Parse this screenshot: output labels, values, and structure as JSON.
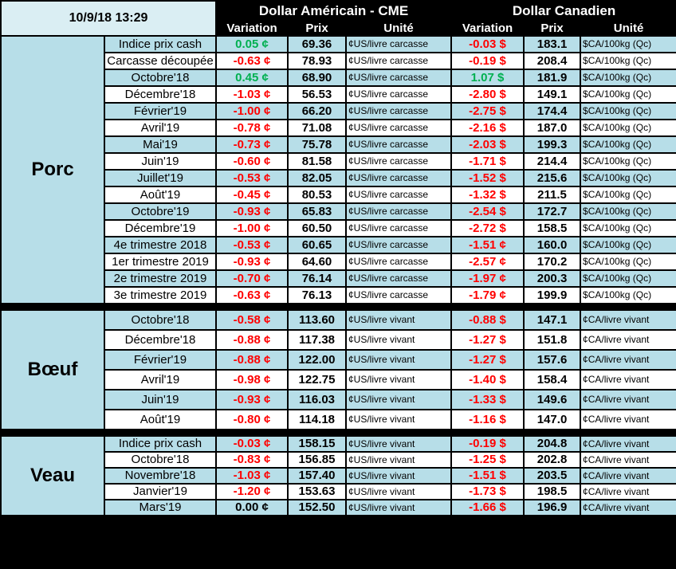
{
  "header": {
    "timestamp": "10/9/18 13:29",
    "us_group": "Dollar Américain - CME",
    "ca_group": "Dollar Canadien",
    "col_variation": "Variation",
    "col_prix": "Prix",
    "col_unite": "Unité"
  },
  "colors": {
    "up": "#00B050",
    "down": "#FF0000",
    "flat": "#000000",
    "stripe_blue": "#B7DEE8",
    "stripe_white": "#FFFFFF",
    "corner_bg": "#DAEEF3",
    "header_bg": "#000000",
    "header_text": "#FFFFFF"
  },
  "chart_data": {
    "type": "table",
    "column_groups": [
      "Dollar Américain - CME",
      "Dollar Canadien"
    ],
    "columns": [
      "Variation",
      "Prix",
      "Unité",
      "Variation",
      "Prix",
      "Unité"
    ],
    "sections": [
      {
        "id": "porc",
        "label": "Porc",
        "rows": [
          {
            "label": "Indice prix cash",
            "us_var": "0.05 ¢",
            "us_dir": "up",
            "us_prix": "69.36",
            "us_unit": "¢US/livre carcasse",
            "ca_var": "-0.03 $",
            "ca_dir": "down",
            "ca_prix": "183.1",
            "ca_unit": "$CA/100kg (Qc)"
          },
          {
            "label": "Carcasse découpée",
            "us_var": "-0.63 ¢",
            "us_dir": "down",
            "us_prix": "78.93",
            "us_unit": "¢US/livre carcasse",
            "ca_var": "-0.19 $",
            "ca_dir": "down",
            "ca_prix": "208.4",
            "ca_unit": "$CA/100kg (Qc)"
          },
          {
            "label": "Octobre'18",
            "us_var": "0.45 ¢",
            "us_dir": "up",
            "us_prix": "68.90",
            "us_unit": "¢US/livre carcasse",
            "ca_var": "1.07 $",
            "ca_dir": "up",
            "ca_prix": "181.9",
            "ca_unit": "$CA/100kg (Qc)"
          },
          {
            "label": "Décembre'18",
            "us_var": "-1.03 ¢",
            "us_dir": "down",
            "us_prix": "56.53",
            "us_unit": "¢US/livre carcasse",
            "ca_var": "-2.80 $",
            "ca_dir": "down",
            "ca_prix": "149.1",
            "ca_unit": "$CA/100kg (Qc)"
          },
          {
            "label": "Février'19",
            "us_var": "-1.00 ¢",
            "us_dir": "down",
            "us_prix": "66.20",
            "us_unit": "¢US/livre carcasse",
            "ca_var": "-2.75 $",
            "ca_dir": "down",
            "ca_prix": "174.4",
            "ca_unit": "$CA/100kg (Qc)"
          },
          {
            "label": "Avril'19",
            "us_var": "-0.78 ¢",
            "us_dir": "down",
            "us_prix": "71.08",
            "us_unit": "¢US/livre carcasse",
            "ca_var": "-2.16 $",
            "ca_dir": "down",
            "ca_prix": "187.0",
            "ca_unit": "$CA/100kg (Qc)"
          },
          {
            "label": "Mai'19",
            "us_var": "-0.73 ¢",
            "us_dir": "down",
            "us_prix": "75.78",
            "us_unit": "¢US/livre carcasse",
            "ca_var": "-2.03 $",
            "ca_dir": "down",
            "ca_prix": "199.3",
            "ca_unit": "$CA/100kg (Qc)"
          },
          {
            "label": "Juin'19",
            "us_var": "-0.60 ¢",
            "us_dir": "down",
            "us_prix": "81.58",
            "us_unit": "¢US/livre carcasse",
            "ca_var": "-1.71 $",
            "ca_dir": "down",
            "ca_prix": "214.4",
            "ca_unit": "$CA/100kg (Qc)"
          },
          {
            "label": "Juillet'19",
            "us_var": "-0.53 ¢",
            "us_dir": "down",
            "us_prix": "82.05",
            "us_unit": "¢US/livre carcasse",
            "ca_var": "-1.52 $",
            "ca_dir": "down",
            "ca_prix": "215.6",
            "ca_unit": "$CA/100kg (Qc)"
          },
          {
            "label": "Août'19",
            "us_var": "-0.45 ¢",
            "us_dir": "down",
            "us_prix": "80.53",
            "us_unit": "¢US/livre carcasse",
            "ca_var": "-1.32 $",
            "ca_dir": "down",
            "ca_prix": "211.5",
            "ca_unit": "$CA/100kg (Qc)"
          },
          {
            "label": "Octobre'19",
            "us_var": "-0.93 ¢",
            "us_dir": "down",
            "us_prix": "65.83",
            "us_unit": "¢US/livre carcasse",
            "ca_var": "-2.54 $",
            "ca_dir": "down",
            "ca_prix": "172.7",
            "ca_unit": "$CA/100kg (Qc)"
          },
          {
            "label": "Décembre'19",
            "us_var": "-1.00 ¢",
            "us_dir": "down",
            "us_prix": "60.50",
            "us_unit": "¢US/livre carcasse",
            "ca_var": "-2.72 $",
            "ca_dir": "down",
            "ca_prix": "158.5",
            "ca_unit": "$CA/100kg (Qc)"
          },
          {
            "label": "4e trimestre 2018",
            "us_var": "-0.53 ¢",
            "us_dir": "down",
            "us_prix": "60.65",
            "us_unit": "¢US/livre carcasse",
            "ca_var": "-1.51 ¢",
            "ca_dir": "down",
            "ca_prix": "160.0",
            "ca_unit": "$CA/100kg (Qc)"
          },
          {
            "label": "1er trimestre 2019",
            "us_var": "-0.93 ¢",
            "us_dir": "down",
            "us_prix": "64.60",
            "us_unit": "¢US/livre carcasse",
            "ca_var": "-2.57 ¢",
            "ca_dir": "down",
            "ca_prix": "170.2",
            "ca_unit": "$CA/100kg (Qc)"
          },
          {
            "label": "2e trimestre 2019",
            "us_var": "-0.70 ¢",
            "us_dir": "down",
            "us_prix": "76.14",
            "us_unit": "¢US/livre carcasse",
            "ca_var": "-1.97 ¢",
            "ca_dir": "down",
            "ca_prix": "200.3",
            "ca_unit": "$CA/100kg (Qc)"
          },
          {
            "label": "3e trimestre 2019",
            "us_var": "-0.63 ¢",
            "us_dir": "down",
            "us_prix": "76.13",
            "us_unit": "¢US/livre carcasse",
            "ca_var": "-1.79 ¢",
            "ca_dir": "down",
            "ca_prix": "199.9",
            "ca_unit": "$CA/100kg (Qc)"
          }
        ]
      },
      {
        "id": "boeuf",
        "label": "Bœuf",
        "rows": [
          {
            "label": "Octobre'18",
            "us_var": "-0.58 ¢",
            "us_dir": "down",
            "us_prix": "113.60",
            "us_unit": "¢US/livre vivant",
            "ca_var": "-0.88 $",
            "ca_dir": "down",
            "ca_prix": "147.1",
            "ca_unit": "¢CA/livre vivant"
          },
          {
            "label": "Décembre'18",
            "us_var": "-0.88 ¢",
            "us_dir": "down",
            "us_prix": "117.38",
            "us_unit": "¢US/livre vivant",
            "ca_var": "-1.27 $",
            "ca_dir": "down",
            "ca_prix": "151.8",
            "ca_unit": "¢CA/livre vivant"
          },
          {
            "label": "Février'19",
            "us_var": "-0.88 ¢",
            "us_dir": "down",
            "us_prix": "122.00",
            "us_unit": "¢US/livre vivant",
            "ca_var": "-1.27 $",
            "ca_dir": "down",
            "ca_prix": "157.6",
            "ca_unit": "¢CA/livre vivant"
          },
          {
            "label": "Avril'19",
            "us_var": "-0.98 ¢",
            "us_dir": "down",
            "us_prix": "122.75",
            "us_unit": "¢US/livre vivant",
            "ca_var": "-1.40 $",
            "ca_dir": "down",
            "ca_prix": "158.4",
            "ca_unit": "¢CA/livre vivant"
          },
          {
            "label": "Juin'19",
            "us_var": "-0.93 ¢",
            "us_dir": "down",
            "us_prix": "116.03",
            "us_unit": "¢US/livre vivant",
            "ca_var": "-1.33 $",
            "ca_dir": "down",
            "ca_prix": "149.6",
            "ca_unit": "¢CA/livre vivant"
          },
          {
            "label": "Août'19",
            "us_var": "-0.80 ¢",
            "us_dir": "down",
            "us_prix": "114.18",
            "us_unit": "¢US/livre vivant",
            "ca_var": "-1.16 $",
            "ca_dir": "down",
            "ca_prix": "147.0",
            "ca_unit": "¢CA/livre vivant"
          }
        ]
      },
      {
        "id": "veau",
        "label": "Veau",
        "rows": [
          {
            "label": "Indice prix cash",
            "us_var": "-0.03 ¢",
            "us_dir": "down",
            "us_prix": "158.15",
            "us_unit": "¢US/livre vivant",
            "ca_var": "-0.19 $",
            "ca_dir": "down",
            "ca_prix": "204.8",
            "ca_unit": "¢CA/livre vivant"
          },
          {
            "label": "Octobre'18",
            "us_var": "-0.83 ¢",
            "us_dir": "down",
            "us_prix": "156.85",
            "us_unit": "¢US/livre vivant",
            "ca_var": "-1.25 $",
            "ca_dir": "down",
            "ca_prix": "202.8",
            "ca_unit": "¢CA/livre vivant"
          },
          {
            "label": "Novembre'18",
            "us_var": "-1.03 ¢",
            "us_dir": "down",
            "us_prix": "157.40",
            "us_unit": "¢US/livre vivant",
            "ca_var": "-1.51 $",
            "ca_dir": "down",
            "ca_prix": "203.5",
            "ca_unit": "¢CA/livre vivant"
          },
          {
            "label": "Janvier'19",
            "us_var": "-1.20 ¢",
            "us_dir": "down",
            "us_prix": "153.63",
            "us_unit": "¢US/livre vivant",
            "ca_var": "-1.73 $",
            "ca_dir": "down",
            "ca_prix": "198.5",
            "ca_unit": "¢CA/livre vivant"
          },
          {
            "label": "Mars'19",
            "us_var": "0.00 ¢",
            "us_dir": "flat",
            "us_prix": "152.50",
            "us_unit": "¢US/livre vivant",
            "ca_var": "-1.66 $",
            "ca_dir": "down",
            "ca_prix": "196.9",
            "ca_unit": "¢CA/livre vivant"
          }
        ]
      }
    ]
  }
}
